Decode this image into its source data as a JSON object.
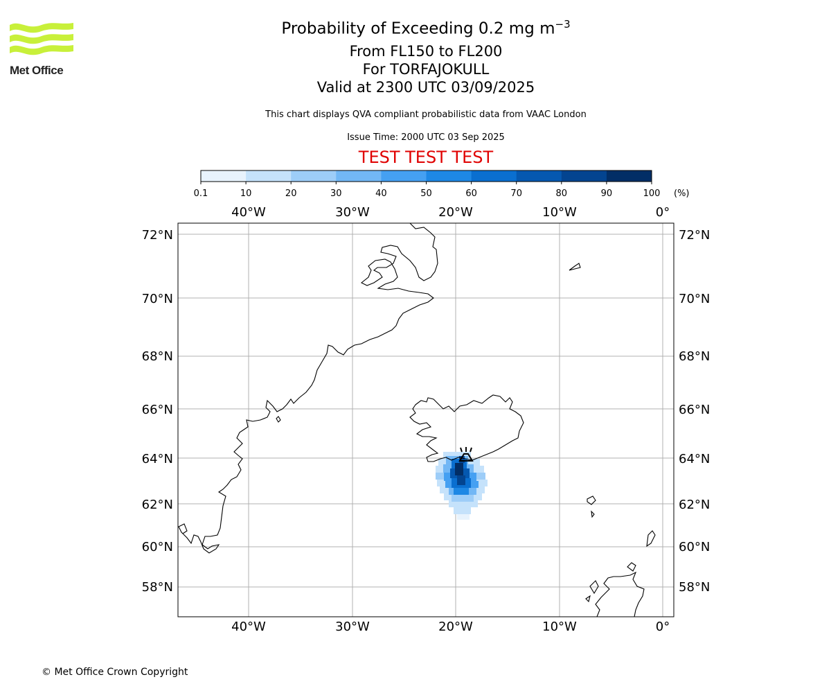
{
  "logo": {
    "text": "Met Office",
    "color": "#c8f03a"
  },
  "title": {
    "main": "Probability of Exceeding 0.2 mg m",
    "main_superscript": "−3",
    "levels": "From FL150 to FL200",
    "volcano": "For TORFAJOKULL",
    "valid": "Valid at 2300 UTC 03/09/2025"
  },
  "disclaimer": "This chart displays QVA compliant probabilistic data from VAAC London",
  "issue_time": "Issue Time: 2000 UTC 03 Sep 2025",
  "test_banner": {
    "text": "TEST TEST TEST",
    "color": "#e00000"
  },
  "colorbar": {
    "ticks": [
      "0.1",
      "10",
      "20",
      "30",
      "40",
      "50",
      "60",
      "70",
      "80",
      "90",
      "100"
    ],
    "unit": "(%)",
    "colors": [
      "#e8f3fd",
      "#c5e2fb",
      "#9dcdf8",
      "#72b7f5",
      "#45a0f2",
      "#1e88e5",
      "#0a6fd0",
      "#0558b0",
      "#034490",
      "#022e66"
    ]
  },
  "map": {
    "lon_labels": [
      "40°W",
      "30°W",
      "20°W",
      "10°W",
      "0°"
    ],
    "lat_labels": [
      "72°N",
      "70°N",
      "68°N",
      "66°N",
      "64°N",
      "62°N",
      "60°N",
      "58°N"
    ],
    "volcano_marker": "volcano-symbol",
    "gridline_color": "#b0b0b0"
  },
  "copyright": "© Met Office Crown Copyright"
}
